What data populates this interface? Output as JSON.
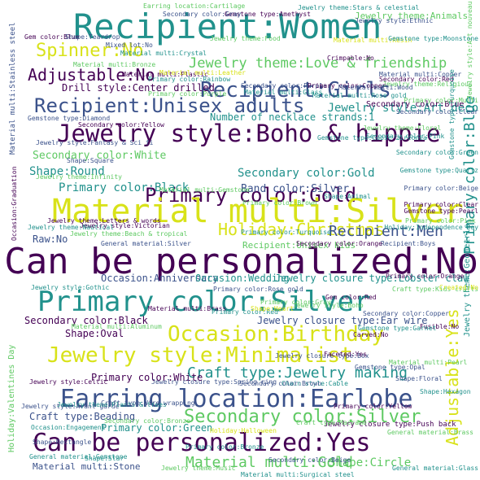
{
  "colors": {
    "background": "#ffffff",
    "purple": "#440154",
    "indigo": "#3b528b",
    "teal": "#21918c",
    "green": "#5ec962",
    "yellow": "#d8e219"
  },
  "words": {
    "w01": "Recipient:Women",
    "w02": "Recipient:Girls",
    "w03": "Spinner:No",
    "w04": "Adjustable:No",
    "w05": "Jewelry theme:Love & friendship",
    "w06": "Recipient:Unisex adults",
    "w07": "Jewelry style:Boho & hippie",
    "w08": "Primary color:Blue",
    "w09": "Primary color:Gold",
    "w10": "Material multi:Silver",
    "w11": "Holiday:Christmas",
    "w12": "Recipient:Men",
    "w13": "Can be personalized:No",
    "w14": "Primary color:Silver",
    "w15": "Occasion:Birthday",
    "w16": "Jewelry style:Minimalist",
    "w17": "Craft type:Jewelry making",
    "w18": "Earring location:Earlobe",
    "w19": "Secondary color:Silver",
    "w20": "Can be personalized:Yes",
    "w21": "Material multi:Gold",
    "w22": "Adjustable:Yes",
    "w23": "Shape:Round",
    "w24": "Primary color:Black",
    "w25": "Secondary color:Gold",
    "w26": "Band color:Silver",
    "w27": "Secondary color:White",
    "w28": "Number of necklace strands:1",
    "w29": "Drill style:Center drilled",
    "w30": "Jewelry style:Art deco",
    "w31": "Secondary color:Blue",
    "w32": "Raw:No",
    "w33": "Occasion:Anniversary",
    "w34": "Occasion:Wedding",
    "w35": "Jewelry closure type:Lobster claw",
    "w36": "Recipient:Unisex kids",
    "w37": "Secondary color:Black",
    "w38": "Jewelry closure type:Ear wire",
    "w39": "Shape:Oval",
    "w40": "Primary color:White",
    "w41": "Craft type:Beading",
    "w42": "Primary color:Green",
    "w43": "Shape:Circle",
    "w44": "Material multi:Stone",
    "w45": "Jewelry theme:Animals",
    "w46": "Secondary color:Purple",
    "w47": "Material multi:Glass",
    "w48": "Material multi:Brass",
    "w49": "Primary color:Red",
    "w50": "Primary color:Brown",
    "w51": "Secondary color:Green",
    "w52": "Primary color:Pink",
    "w53": "Material multi:Copper",
    "w54": "Material multi:Plastic",
    "w55": "Gemstone type:Diamond",
    "w56": "Jewelry theme:Floral",
    "w57": "Material multi:Rose gold",
    "w58": "Secondary color:Yellow",
    "w59": "Mixed lot:No",
    "w60": "Material multi:Gemstone",
    "w61": "Jewelry theme:Beach & tropical",
    "w62": "Jewelry theme:Letters & words",
    "w63": "Recipient:Boys",
    "w64": "Carved:No",
    "w65": "Chain style:Cable",
    "w66": "Jewelry closure type:Push back",
    "w67": "Shape:Floral",
    "w68": "General material:Brass",
    "w69": "Gemstone type:Amethyst",
    "w70": "Jewelry theme:Stars & celestial",
    "w71": "Earring location:Cartilage",
    "w72": "Secondary color:Gray",
    "w73": "Secondary color:Red",
    "w74": "Material multi:Stainless steel",
    "w75": "Gem color:Blue",
    "w76": "Primary color:Rainbow",
    "w77": "Jewelry theme:Religious",
    "w78": "Primary color:Copper",
    "w79": "Secondary color:Clear",
    "w80": "Primary color:Purple",
    "w81": "Gemstone type:Turquoise",
    "w82": "Jewelry theme:Geometric",
    "w83": "Secondary color:Orange",
    "w84": "Primary color:Orange",
    "w85": "Primary color:Gray",
    "w86": "Secondary color:Pink",
    "w87": "Holiday:Valentines Day",
    "w88": "Jewelry style:Victorian",
    "w89": "Jewelry style:Avant garde",
    "w90": "Material multi:Bronze",
    "w91": "Jewelry theme:Plants & trees",
    "w92": "Primary color:Clear",
    "w93": "Shape:Square",
    "w94": "Shape:Heart",
    "w95": "Shape:Animal",
    "w96": "Secondary color:Brown",
    "w97": "Jewelry style:Celtic",
    "w98": "Jewelry style:Gothic",
    "w99": "Craft type:Kids crafts",
    "x01": "Material multi:Surgical steel",
    "x02": "General material:Glass",
    "x03": "General material:Gemstone",
    "x04": "Jewelry style:Art nouveau",
    "x05": "Primary color:Bronze",
    "x06": "Primary color:Beige",
    "x07": "Fusible:No",
    "x08": "Created:No",
    "x09": "Primary color:Turquoise",
    "x10": "Shape:Teardrop",
    "x11": "Gem color:Red",
    "x12": "Material multi:Wood",
    "x13": "Gemstone type:Quartz",
    "x14": "Gemstone type:Pearl",
    "x15": "Shape:Rectangle",
    "x16": "Jewelry closure type:Spring ring",
    "x17": "Jewelry style:Fantasy & Sci fi",
    "x18": "Occasion:Graduation",
    "x19": "Jewelry theme:Infinity",
    "x20": "Crimpable:No",
    "x21": "Gemstone type:Cubic zirconia",
    "x22": "Material multi:Pearl",
    "x23": "Holiday:Independence Day",
    "x24": "Occasion:Engagement",
    "x25": "Jewelry closure type:Box",
    "x26": "Secondary color:Beige",
    "x27": "General material:Silver",
    "x28": "Material multi:Leather",
    "x29": "Jewelry theme:Nautical",
    "x30": "Material multi:Aluminum",
    "x31": "Primary color:Rose gold",
    "x32": "Gemstone type:Garnet",
    "x33": "Jewelry style:Boho",
    "x34": "Faceted:Yes",
    "x35": "Gemstone type:Opal",
    "x36": "Material multi:Resin",
    "x37": "Jewelry theme:Food",
    "x38": "Craft type:Wire wrapping",
    "x39": "Secondary color:Bronze",
    "x40": "Holiday:Halloween",
    "x41": "Shape:Star",
    "x42": "Primary color:Yellow",
    "x43": "Craft type:Macrame",
    "x44": "Material multi:Crystal",
    "x45": "Jewelry style:Ethnic",
    "x46": "Gemstone type:Moonstone",
    "x47": "Primary color:Multi",
    "x48": "Secondary color:Copper",
    "x49": "Jewelry theme:Music",
    "x50": "Shape:Hexagon"
  }
}
